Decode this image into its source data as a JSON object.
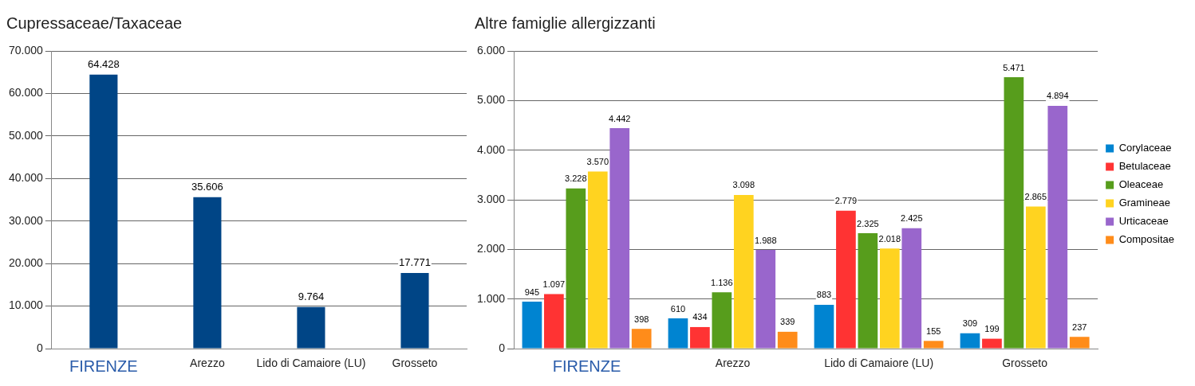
{
  "chart_data": [
    {
      "type": "bar",
      "title": "Cupressaceae/Taxaceae",
      "categories": [
        "FIRENZE",
        "Arezzo",
        "Lido di Camaiore (LU)",
        "Grosseto"
      ],
      "values": [
        64428,
        35606,
        9764,
        17771
      ],
      "color": "#004586",
      "value_labels": [
        "64.428",
        "35.606",
        "9.764",
        "17.771"
      ],
      "ylim": [
        0,
        70000
      ],
      "yticks": [
        {
          "value": 0,
          "label": "0"
        },
        {
          "value": 10000,
          "label": "10.000"
        },
        {
          "value": 20000,
          "label": "20.000"
        },
        {
          "value": 30000,
          "label": "30.000"
        },
        {
          "value": 40000,
          "label": "40.000"
        },
        {
          "value": 50000,
          "label": "50.000"
        },
        {
          "value": 60000,
          "label": "60.000"
        },
        {
          "value": 70000,
          "label": "70.000"
        }
      ],
      "grid": "y",
      "legend": false
    },
    {
      "type": "bar",
      "title": "Altre famiglie allergizzanti",
      "categories": [
        "FIRENZE",
        "Arezzo",
        "Lido di Camaiore (LU)",
        "Grosseto"
      ],
      "series": [
        {
          "name": "Corylaceae",
          "color": "#0084d1",
          "values": [
            945,
            610,
            883,
            309
          ],
          "value_labels": [
            "945",
            "610",
            "883",
            "309"
          ]
        },
        {
          "name": "Betulaceae",
          "color": "#ff3333",
          "values": [
            1097,
            434,
            2779,
            199
          ],
          "value_labels": [
            "1.097",
            "434",
            "2.779",
            "199"
          ]
        },
        {
          "name": "Oleaceae",
          "color": "#579d1c",
          "values": [
            3228,
            1136,
            2325,
            5471
          ],
          "value_labels": [
            "3.228",
            "1.136",
            "2.325",
            "5.471"
          ]
        },
        {
          "name": "Gramineae",
          "color": "#ffd320",
          "values": [
            3570,
            3098,
            2018,
            2865
          ],
          "value_labels": [
            "3.570",
            "3.098",
            "2.018",
            "2.865"
          ]
        },
        {
          "name": "Urticaceae",
          "color": "#9966cc",
          "values": [
            4442,
            1988,
            2425,
            4894
          ],
          "value_labels": [
            "4.442",
            "1.988",
            "2.425",
            "4.894"
          ]
        },
        {
          "name": "Compositae",
          "color": "#ff8c1a",
          "values": [
            398,
            339,
            155,
            237
          ],
          "value_labels": [
            "398",
            "339",
            "155",
            "237"
          ]
        }
      ],
      "ylim": [
        0,
        6000
      ],
      "yticks": [
        {
          "value": 0,
          "label": "0"
        },
        {
          "value": 1000,
          "label": "1.000"
        },
        {
          "value": 2000,
          "label": "2.000"
        },
        {
          "value": 3000,
          "label": "3.000"
        },
        {
          "value": 4000,
          "label": "4.000"
        },
        {
          "value": 5000,
          "label": "5.000"
        },
        {
          "value": 6000,
          "label": "6.000"
        }
      ],
      "grid": "y",
      "legend": "right"
    }
  ]
}
